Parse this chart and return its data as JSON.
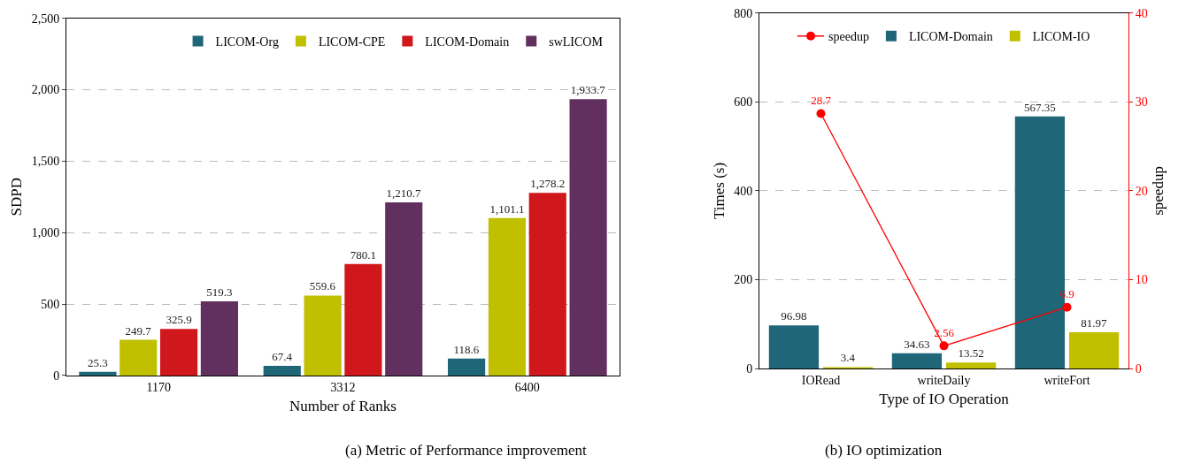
{
  "chart_data": [
    {
      "type": "bar",
      "xlabel": "Number of Ranks",
      "ylabel": "SDPD",
      "categories": [
        "1170",
        "3312",
        "6400"
      ],
      "series": [
        {
          "name": "LICOM-Org",
          "color": "#1f6679",
          "values": [
            25.3,
            67.4,
            118.6
          ],
          "value_labels": [
            "25.3",
            "67.4",
            "118.6"
          ]
        },
        {
          "name": "LICOM-CPE",
          "color": "#c0bf00",
          "values": [
            249.7,
            559.6,
            1101.1
          ],
          "value_labels": [
            "249.7",
            "559.6",
            "1,101.1"
          ]
        },
        {
          "name": "LICOM-Domain",
          "color": "#d0181c",
          "values": [
            325.9,
            780.1,
            1278.2
          ],
          "value_labels": [
            "325.9",
            "780.1",
            "1,278.2"
          ]
        },
        {
          "name": "swLICOM",
          "color": "#62305f",
          "values": [
            519.3,
            1210.7,
            1933.7
          ],
          "value_labels": [
            "519.3",
            "1,210.7",
            "1,933.7"
          ]
        }
      ],
      "ylim": [
        0,
        2500
      ],
      "yticks": [
        0,
        500,
        {
          "value": 1000,
          "label": "1,000"
        },
        {
          "value": 1500,
          "label": "1,500"
        },
        {
          "value": 2000,
          "label": "2,000"
        },
        {
          "value": 2500,
          "label": "2,500"
        }
      ],
      "grid": "y",
      "legend": "top right",
      "annotations": [
        "(a) Metric of Performance improvement"
      ]
    },
    {
      "type": "bar",
      "xlabel": "Type of IO Operation",
      "ylabel": "Times (s)",
      "y2label": "speedup",
      "categories": [
        "IORead",
        "writeDaily",
        "writeFort"
      ],
      "series": [
        {
          "name": "speedup",
          "type": "line",
          "axis": "y2",
          "color": "#ff0000",
          "marker": "circle",
          "values": [
            28.7,
            2.56,
            6.9
          ]
        },
        {
          "name": "LICOM-Domain",
          "color": "#1f6679",
          "values": [
            96.98,
            34.63,
            567.35
          ]
        },
        {
          "name": "LICOM-IO",
          "color": "#c0bf00",
          "values": [
            3.4,
            13.52,
            81.97
          ]
        }
      ],
      "ylim": [
        0,
        800
      ],
      "yticks": [
        0,
        200,
        400,
        600,
        800
      ],
      "y2lim": [
        0,
        40
      ],
      "y2ticks": [
        0,
        10,
        20,
        30,
        40
      ],
      "grid": "y",
      "legend": "top",
      "data_labels": true,
      "annotations": [
        "(b) IO optimization"
      ]
    }
  ]
}
